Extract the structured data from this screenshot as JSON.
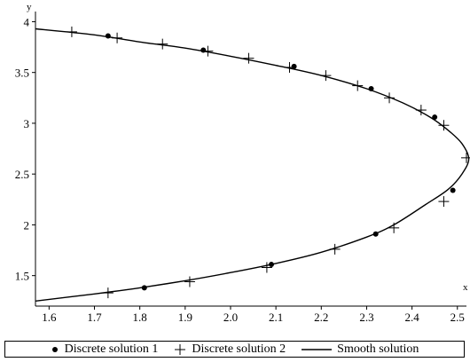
{
  "chart_data": {
    "type": "line",
    "xlabel": "x",
    "ylabel": "y",
    "xlim": [
      1.57,
      2.52
    ],
    "ylim": [
      1.2,
      4.1
    ],
    "x_ticks": [
      1.6,
      1.7,
      1.8,
      1.9,
      2.0,
      2.1,
      2.2,
      2.3,
      2.4,
      2.5
    ],
    "y_ticks": [
      1.5,
      2,
      2.5,
      3,
      3.5,
      4
    ],
    "x_tick_labels": [
      "1.6",
      "1.7",
      "1.8",
      "1.9",
      "2.0",
      "2.1",
      "2.2",
      "2.3",
      "2.4",
      "2.5"
    ],
    "y_tick_labels": [
      "1.5",
      "2",
      "2.5",
      "3",
      "3.5",
      "4"
    ],
    "grid": false,
    "legend_position": "bottom",
    "series": [
      {
        "name": "Discrete solution 1",
        "marker": "dot",
        "x": [
          1.73,
          1.94,
          2.14,
          2.31,
          2.45,
          2.49,
          2.32,
          2.09,
          1.81
        ],
        "y": [
          3.86,
          3.72,
          3.56,
          3.34,
          3.06,
          2.34,
          1.91,
          1.61,
          1.38
        ]
      },
      {
        "name": "Discrete solution 2",
        "marker": "plus",
        "x": [
          1.65,
          1.75,
          1.85,
          1.95,
          2.04,
          2.13,
          2.21,
          2.28,
          2.35,
          2.42,
          2.47,
          2.52,
          2.47,
          2.36,
          2.23,
          2.08,
          1.91,
          1.73
        ],
        "y": [
          3.9,
          3.84,
          3.78,
          3.71,
          3.64,
          3.55,
          3.47,
          3.37,
          3.25,
          3.13,
          2.98,
          2.66,
          2.23,
          1.97,
          1.76,
          1.58,
          1.44,
          1.33
        ]
      },
      {
        "name": "Smooth solution",
        "marker": "line",
        "x": [
          1.57,
          1.7,
          1.8,
          1.9,
          2.0,
          2.1,
          2.2,
          2.3,
          2.38,
          2.44,
          2.48,
          2.51,
          2.525,
          2.51,
          2.48,
          2.43,
          2.36,
          2.3,
          2.2,
          2.1,
          2.0,
          1.9,
          1.8,
          1.7,
          1.57
        ],
        "y": [
          3.93,
          3.87,
          3.8,
          3.74,
          3.66,
          3.57,
          3.47,
          3.34,
          3.2,
          3.06,
          2.93,
          2.8,
          2.65,
          2.5,
          2.35,
          2.2,
          2.0,
          1.88,
          1.73,
          1.62,
          1.53,
          1.45,
          1.38,
          1.32,
          1.25
        ]
      }
    ]
  }
}
